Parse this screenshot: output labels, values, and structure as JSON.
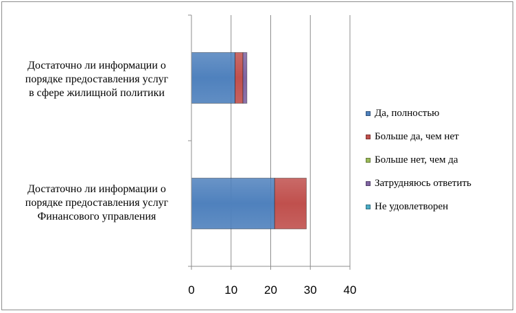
{
  "chart_data": {
    "type": "bar",
    "orientation": "horizontal",
    "stacked": true,
    "categories": [
      "Достаточно ли информации о\nпорядке предоставления  услуг\nв сфере жилищной политики",
      "Достаточно ли информации о\nпорядке предоставления услуг\nФинансового управления"
    ],
    "series": [
      {
        "name": "Да, полностью",
        "color": "#4f81bd",
        "values": [
          11,
          21
        ]
      },
      {
        "name": "Больше да, чем нет",
        "color": "#c0504d",
        "values": [
          2,
          8
        ]
      },
      {
        "name": "Больше нет, чем да",
        "color": "#9bbb59",
        "values": [
          0,
          0
        ]
      },
      {
        "name": "Затрудняюсь ответить",
        "color": "#8064a2",
        "values": [
          1,
          0
        ]
      },
      {
        "name": "Не удовлетворен",
        "color": "#4bacc6",
        "values": [
          0,
          0
        ]
      }
    ],
    "xlim": [
      0,
      40
    ],
    "xticks": [
      "0",
      "10",
      "20",
      "30",
      "40"
    ],
    "grid": true,
    "legend_position": "right"
  }
}
